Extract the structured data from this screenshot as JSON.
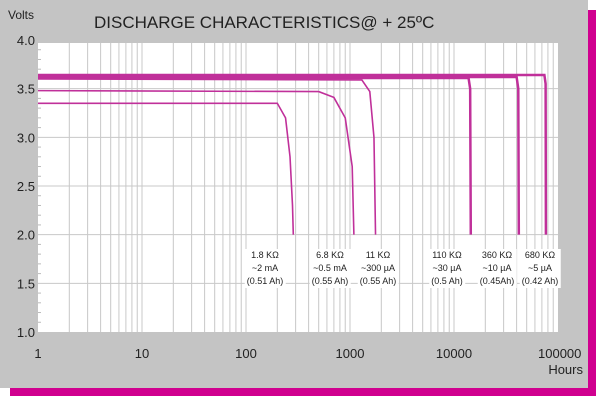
{
  "chart_data": {
    "type": "line",
    "title": "DISCHARGE CHARACTERISTICS@ +   25ºC",
    "ylabel": "Volts",
    "xlabel": "Hours",
    "xscale": "log",
    "xlim": [
      1,
      100000
    ],
    "ylim": [
      1.0,
      4.0
    ],
    "xticks": [
      "1",
      "10",
      "100",
      "1000",
      "10000",
      "100000"
    ],
    "yticks": [
      "4.0",
      "3.5",
      "3.0",
      "2.5",
      "2.0",
      "1.5",
      "1.0"
    ],
    "grid": true,
    "line_color": "#c0309a",
    "series": [
      {
        "name": "1.8 KΩ",
        "current": "~2 mA",
        "capacity": "(0.51 Ah)",
        "points": [
          [
            1,
            3.35
          ],
          [
            200,
            3.35
          ],
          [
            240,
            3.2
          ],
          [
            265,
            2.8
          ],
          [
            280,
            2.3
          ],
          [
            285,
            2.0
          ]
        ]
      },
      {
        "name": "6.8 KΩ",
        "current": "~0.5 mA",
        "capacity": "(0.55 Ah)",
        "points": [
          [
            1,
            3.48
          ],
          [
            500,
            3.47
          ],
          [
            700,
            3.41
          ],
          [
            900,
            3.2
          ],
          [
            1050,
            2.7
          ],
          [
            1090,
            2.0
          ]
        ]
      },
      {
        "name": "11 KΩ",
        "current": "~300 µA",
        "capacity": "(0.55 Ah)",
        "points": [
          [
            1,
            3.6
          ],
          [
            1300,
            3.59
          ],
          [
            1550,
            3.47
          ],
          [
            1700,
            3.0
          ],
          [
            1760,
            2.0
          ]
        ]
      },
      {
        "name": "110 KΩ",
        "current": "~30 µA",
        "capacity": "(0.5 Ah)",
        "points": [
          [
            1,
            3.61
          ],
          [
            13800,
            3.61
          ],
          [
            14300,
            3.5
          ],
          [
            14500,
            2.0
          ]
        ]
      },
      {
        "name": "360 KΩ",
        "current": "~10 µA",
        "capacity": "(0.45Ah)",
        "points": [
          [
            1,
            3.62
          ],
          [
            40000,
            3.62
          ],
          [
            41500,
            3.5
          ],
          [
            42000,
            2.0
          ]
        ]
      },
      {
        "name": "680 KΩ",
        "current": "~5 µA",
        "capacity": "(0.42 Ah)",
        "points": [
          [
            1,
            3.64
          ],
          [
            74000,
            3.64
          ],
          [
            76000,
            3.55
          ],
          [
            76500,
            2.0
          ]
        ]
      }
    ]
  }
}
